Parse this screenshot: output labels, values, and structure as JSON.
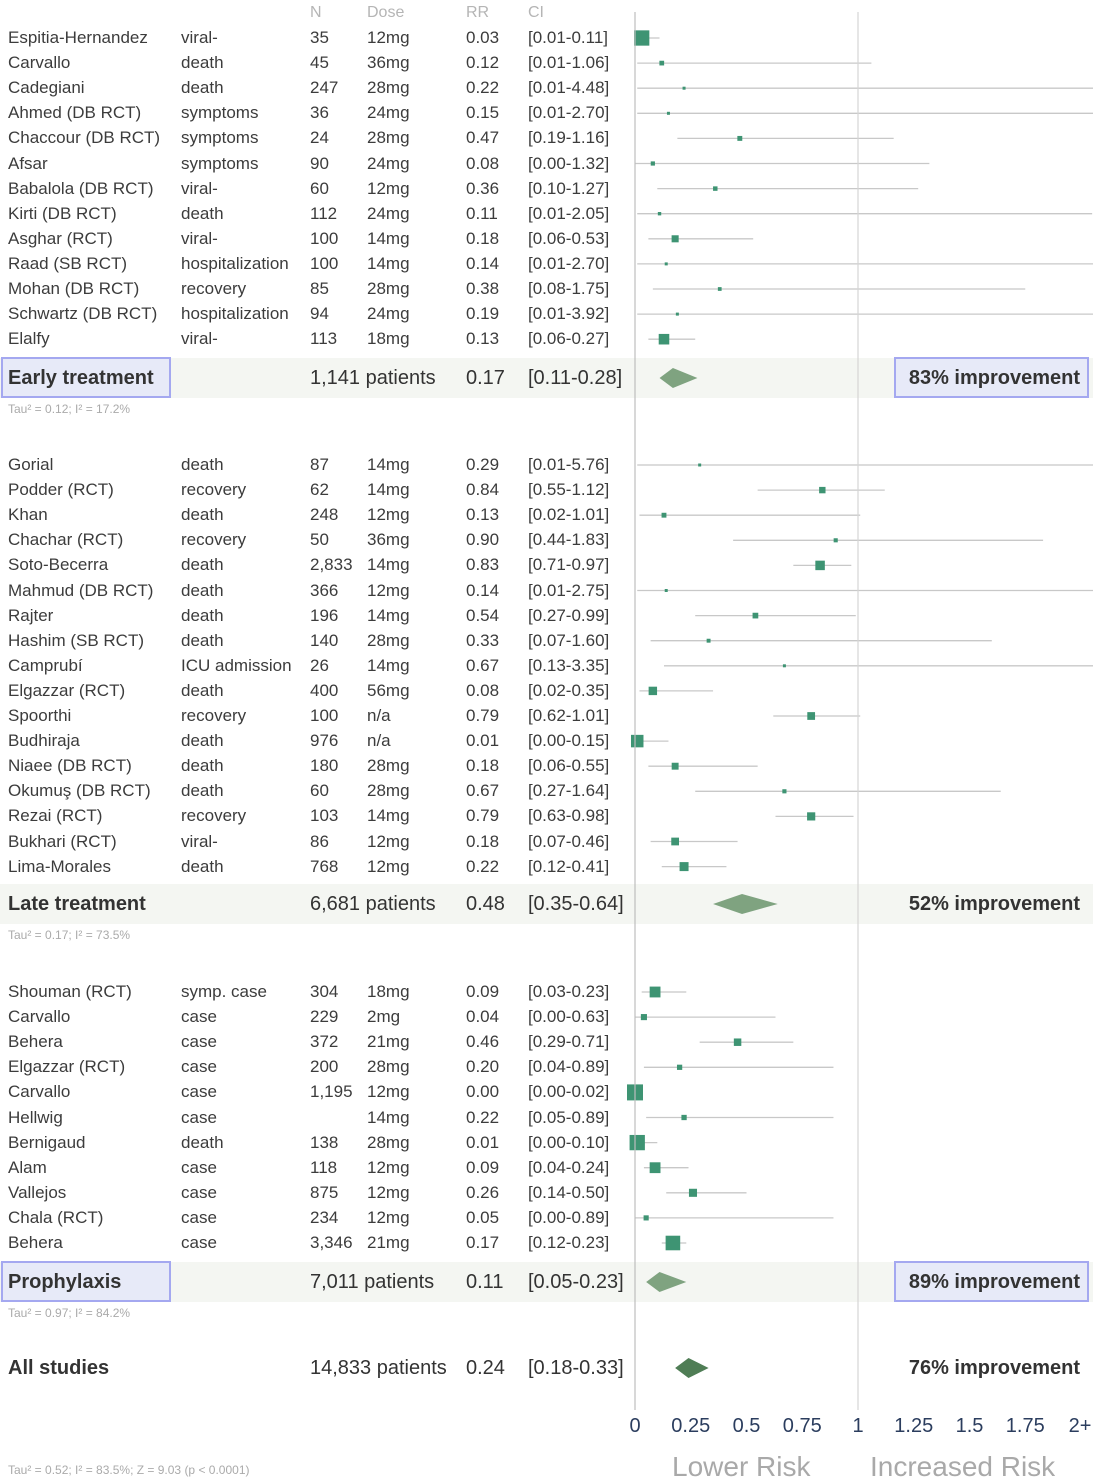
{
  "headers": {
    "n": "N",
    "dose": "Dose",
    "rr": "RR",
    "ci": "CI"
  },
  "groups": [
    {
      "name": "Early treatment",
      "patients": "1,141 patients",
      "rr_text": "0.17",
      "ci_text": "[0.11-0.28]",
      "rr": 0.17,
      "lo": 0.11,
      "hi": 0.28,
      "improvement": "83% improvement",
      "tau": "Tau² = 0.12; I² = 17.2%",
      "highlighted": true,
      "studies": [
        {
          "name": "Espitia-Hernandez",
          "outcome": "viral-",
          "n": "35",
          "dose": "12mg",
          "rr_text": "0.03",
          "ci_text": "[0.01-0.11]",
          "rr": 0.03,
          "lo": 0.01,
          "hi": 0.11
        },
        {
          "name": "Carvallo",
          "outcome": "death",
          "n": "45",
          "dose": "36mg",
          "rr_text": "0.12",
          "ci_text": "[0.01-1.06]",
          "rr": 0.12,
          "lo": 0.01,
          "hi": 1.06
        },
        {
          "name": "Cadegiani",
          "outcome": "death",
          "n": "247",
          "dose": "28mg",
          "rr_text": "0.22",
          "ci_text": "[0.01-4.48]",
          "rr": 0.22,
          "lo": 0.01,
          "hi": 4.48
        },
        {
          "name": "Ahmed (DB RCT)",
          "outcome": "symptoms",
          "n": "36",
          "dose": "24mg",
          "rr_text": "0.15",
          "ci_text": "[0.01-2.70]",
          "rr": 0.15,
          "lo": 0.01,
          "hi": 2.7
        },
        {
          "name": "Chaccour (DB RCT)",
          "outcome": "symptoms",
          "n": "24",
          "dose": "28mg",
          "rr_text": "0.47",
          "ci_text": "[0.19-1.16]",
          "rr": 0.47,
          "lo": 0.19,
          "hi": 1.16
        },
        {
          "name": "Afsar",
          "outcome": "symptoms",
          "n": "90",
          "dose": "24mg",
          "rr_text": "0.08",
          "ci_text": "[0.00-1.32]",
          "rr": 0.08,
          "lo": 0.0,
          "hi": 1.32
        },
        {
          "name": "Babalola (DB RCT)",
          "outcome": "viral-",
          "n": "60",
          "dose": "12mg",
          "rr_text": "0.36",
          "ci_text": "[0.10-1.27]",
          "rr": 0.36,
          "lo": 0.1,
          "hi": 1.27
        },
        {
          "name": "Kirti (DB RCT)",
          "outcome": "death",
          "n": "112",
          "dose": "24mg",
          "rr_text": "0.11",
          "ci_text": "[0.01-2.05]",
          "rr": 0.11,
          "lo": 0.01,
          "hi": 2.05
        },
        {
          "name": "Asghar (RCT)",
          "outcome": "viral-",
          "n": "100",
          "dose": "14mg",
          "rr_text": "0.18",
          "ci_text": "[0.06-0.53]",
          "rr": 0.18,
          "lo": 0.06,
          "hi": 0.53
        },
        {
          "name": "Raad (SB RCT)",
          "outcome": "hospitalization",
          "n": "100",
          "dose": "14mg",
          "rr_text": "0.14",
          "ci_text": "[0.01-2.70]",
          "rr": 0.14,
          "lo": 0.01,
          "hi": 2.7
        },
        {
          "name": "Mohan (DB RCT)",
          "outcome": "recovery",
          "n": "85",
          "dose": "28mg",
          "rr_text": "0.38",
          "ci_text": "[0.08-1.75]",
          "rr": 0.38,
          "lo": 0.08,
          "hi": 1.75
        },
        {
          "name": "Schwartz (DB RCT)",
          "outcome": "hospitalization",
          "n": "94",
          "dose": "24mg",
          "rr_text": "0.19",
          "ci_text": "[0.01-3.92]",
          "rr": 0.19,
          "lo": 0.01,
          "hi": 3.92
        },
        {
          "name": "Elalfy",
          "outcome": "viral-",
          "n": "113",
          "dose": "18mg",
          "rr_text": "0.13",
          "ci_text": "[0.06-0.27]",
          "rr": 0.13,
          "lo": 0.06,
          "hi": 0.27
        }
      ]
    },
    {
      "name": "Late treatment",
      "patients": "6,681 patients",
      "rr_text": "0.48",
      "ci_text": "[0.35-0.64]",
      "rr": 0.48,
      "lo": 0.35,
      "hi": 0.64,
      "improvement": "52% improvement",
      "tau": "Tau² = 0.17; I² = 73.5%",
      "highlighted": false,
      "studies": [
        {
          "name": "Gorial",
          "outcome": "death",
          "n": "87",
          "dose": "14mg",
          "rr_text": "0.29",
          "ci_text": "[0.01-5.76]",
          "rr": 0.29,
          "lo": 0.01,
          "hi": 5.76
        },
        {
          "name": "Podder (RCT)",
          "outcome": "recovery",
          "n": "62",
          "dose": "14mg",
          "rr_text": "0.84",
          "ci_text": "[0.55-1.12]",
          "rr": 0.84,
          "lo": 0.55,
          "hi": 1.12
        },
        {
          "name": "Khan",
          "outcome": "death",
          "n": "248",
          "dose": "12mg",
          "rr_text": "0.13",
          "ci_text": "[0.02-1.01]",
          "rr": 0.13,
          "lo": 0.02,
          "hi": 1.01
        },
        {
          "name": "Chachar (RCT)",
          "outcome": "recovery",
          "n": "50",
          "dose": "36mg",
          "rr_text": "0.90",
          "ci_text": "[0.44-1.83]",
          "rr": 0.9,
          "lo": 0.44,
          "hi": 1.83
        },
        {
          "name": "Soto-Becerra",
          "outcome": "death",
          "n": "2,833",
          "dose": "14mg",
          "rr_text": "0.83",
          "ci_text": "[0.71-0.97]",
          "rr": 0.83,
          "lo": 0.71,
          "hi": 0.97
        },
        {
          "name": "Mahmud (DB RCT)",
          "outcome": "death",
          "n": "366",
          "dose": "12mg",
          "rr_text": "0.14",
          "ci_text": "[0.01-2.75]",
          "rr": 0.14,
          "lo": 0.01,
          "hi": 2.75
        },
        {
          "name": "Rajter",
          "outcome": "death",
          "n": "196",
          "dose": "14mg",
          "rr_text": "0.54",
          "ci_text": "[0.27-0.99]",
          "rr": 0.54,
          "lo": 0.27,
          "hi": 0.99
        },
        {
          "name": "Hashim (SB RCT)",
          "outcome": "death",
          "n": "140",
          "dose": "28mg",
          "rr_text": "0.33",
          "ci_text": "[0.07-1.60]",
          "rr": 0.33,
          "lo": 0.07,
          "hi": 1.6
        },
        {
          "name": "Camprubí",
          "outcome": "ICU admission",
          "n": "26",
          "dose": "14mg",
          "rr_text": "0.67",
          "ci_text": "[0.13-3.35]",
          "rr": 0.67,
          "lo": 0.13,
          "hi": 3.35
        },
        {
          "name": "Elgazzar (RCT)",
          "outcome": "death",
          "n": "400",
          "dose": "56mg",
          "rr_text": "0.08",
          "ci_text": "[0.02-0.35]",
          "rr": 0.08,
          "lo": 0.02,
          "hi": 0.35
        },
        {
          "name": "Spoorthi",
          "outcome": "recovery",
          "n": "100",
          "dose": "n/a",
          "rr_text": "0.79",
          "ci_text": "[0.62-1.01]",
          "rr": 0.79,
          "lo": 0.62,
          "hi": 1.01
        },
        {
          "name": "Budhiraja",
          "outcome": "death",
          "n": "976",
          "dose": "n/a",
          "rr_text": "0.01",
          "ci_text": "[0.00-0.15]",
          "rr": 0.01,
          "lo": 0.0,
          "hi": 0.15
        },
        {
          "name": "Niaee (DB RCT)",
          "outcome": "death",
          "n": "180",
          "dose": "28mg",
          "rr_text": "0.18",
          "ci_text": "[0.06-0.55]",
          "rr": 0.18,
          "lo": 0.06,
          "hi": 0.55
        },
        {
          "name": "Okumuş (DB RCT)",
          "outcome": "death",
          "n": "60",
          "dose": "28mg",
          "rr_text": "0.67",
          "ci_text": "[0.27-1.64]",
          "rr": 0.67,
          "lo": 0.27,
          "hi": 1.64
        },
        {
          "name": "Rezai (RCT)",
          "outcome": "recovery",
          "n": "103",
          "dose": "14mg",
          "rr_text": "0.79",
          "ci_text": "[0.63-0.98]",
          "rr": 0.79,
          "lo": 0.63,
          "hi": 0.98
        },
        {
          "name": "Bukhari (RCT)",
          "outcome": "viral-",
          "n": "86",
          "dose": "12mg",
          "rr_text": "0.18",
          "ci_text": "[0.07-0.46]",
          "rr": 0.18,
          "lo": 0.07,
          "hi": 0.46
        },
        {
          "name": "Lima-Morales",
          "outcome": "death",
          "n": "768",
          "dose": "12mg",
          "rr_text": "0.22",
          "ci_text": "[0.12-0.41]",
          "rr": 0.22,
          "lo": 0.12,
          "hi": 0.41
        }
      ]
    },
    {
      "name": "Prophylaxis",
      "patients": "7,011 patients",
      "rr_text": "0.11",
      "ci_text": "[0.05-0.23]",
      "rr": 0.11,
      "lo": 0.05,
      "hi": 0.23,
      "improvement": "89% improvement",
      "tau": "Tau² = 0.97; I² = 84.2%",
      "highlighted": true,
      "studies": [
        {
          "name": "Shouman (RCT)",
          "outcome": "symp. case",
          "n": "304",
          "dose": "18mg",
          "rr_text": "0.09",
          "ci_text": "[0.03-0.23]",
          "rr": 0.09,
          "lo": 0.03,
          "hi": 0.23
        },
        {
          "name": "Carvallo",
          "outcome": "case",
          "n": "229",
          "dose": "2mg",
          "rr_text": "0.04",
          "ci_text": "[0.00-0.63]",
          "rr": 0.04,
          "lo": 0.0,
          "hi": 0.63
        },
        {
          "name": "Behera",
          "outcome": "case",
          "n": "372",
          "dose": "21mg",
          "rr_text": "0.46",
          "ci_text": "[0.29-0.71]",
          "rr": 0.46,
          "lo": 0.29,
          "hi": 0.71
        },
        {
          "name": "Elgazzar (RCT)",
          "outcome": "case",
          "n": "200",
          "dose": "28mg",
          "rr_text": "0.20",
          "ci_text": "[0.04-0.89]",
          "rr": 0.2,
          "lo": 0.04,
          "hi": 0.89
        },
        {
          "name": "Carvallo",
          "outcome": "case",
          "n": "1,195",
          "dose": "12mg",
          "rr_text": "0.00",
          "ci_text": "[0.00-0.02]",
          "rr": 0.0,
          "lo": 0.0,
          "hi": 0.02
        },
        {
          "name": "Hellwig",
          "outcome": "case",
          "n": "",
          "dose": "14mg",
          "rr_text": "0.22",
          "ci_text": "[0.05-0.89]",
          "rr": 0.22,
          "lo": 0.05,
          "hi": 0.89
        },
        {
          "name": "Bernigaud",
          "outcome": "death",
          "n": "138",
          "dose": "28mg",
          "rr_text": "0.01",
          "ci_text": "[0.00-0.10]",
          "rr": 0.01,
          "lo": 0.0,
          "hi": 0.1
        },
        {
          "name": "Alam",
          "outcome": "case",
          "n": "118",
          "dose": "12mg",
          "rr_text": "0.09",
          "ci_text": "[0.04-0.24]",
          "rr": 0.09,
          "lo": 0.04,
          "hi": 0.24
        },
        {
          "name": "Vallejos",
          "outcome": "case",
          "n": "875",
          "dose": "12mg",
          "rr_text": "0.26",
          "ci_text": "[0.14-0.50]",
          "rr": 0.26,
          "lo": 0.14,
          "hi": 0.5
        },
        {
          "name": "Chala (RCT)",
          "outcome": "case",
          "n": "234",
          "dose": "12mg",
          "rr_text": "0.05",
          "ci_text": "[0.00-0.89]",
          "rr": 0.05,
          "lo": 0.0,
          "hi": 0.89
        },
        {
          "name": "Behera",
          "outcome": "case",
          "n": "3,346",
          "dose": "21mg",
          "rr_text": "0.17",
          "ci_text": "[0.12-0.23]",
          "rr": 0.17,
          "lo": 0.12,
          "hi": 0.23
        }
      ]
    }
  ],
  "overall": {
    "name": "All studies",
    "patients": "14,833 patients",
    "rr_text": "0.24",
    "ci_text": "[0.18-0.33]",
    "rr": 0.24,
    "lo": 0.18,
    "hi": 0.33,
    "improvement": "76% improvement",
    "stats": "Tau² = 0.52; I² = 83.5%; Z = 9.03 (p < 0.0001)"
  },
  "chart_data": {
    "type": "forest",
    "x_ticks": [
      "0",
      "0.25",
      "0.5",
      "0.75",
      "1",
      "1.25",
      "1.5",
      "1.75",
      "2+"
    ],
    "xlim": [
      0,
      2
    ],
    "reference_line": 1,
    "lower_label": "Lower Risk",
    "higher_label": "Increased Risk"
  },
  "colors": {
    "marker": "#3e9473",
    "diamond": "#7fa380",
    "overall_diamond": "#4f7d55",
    "ci_line": "#c8c8c8",
    "highlight_border": "#a4a8f0"
  }
}
